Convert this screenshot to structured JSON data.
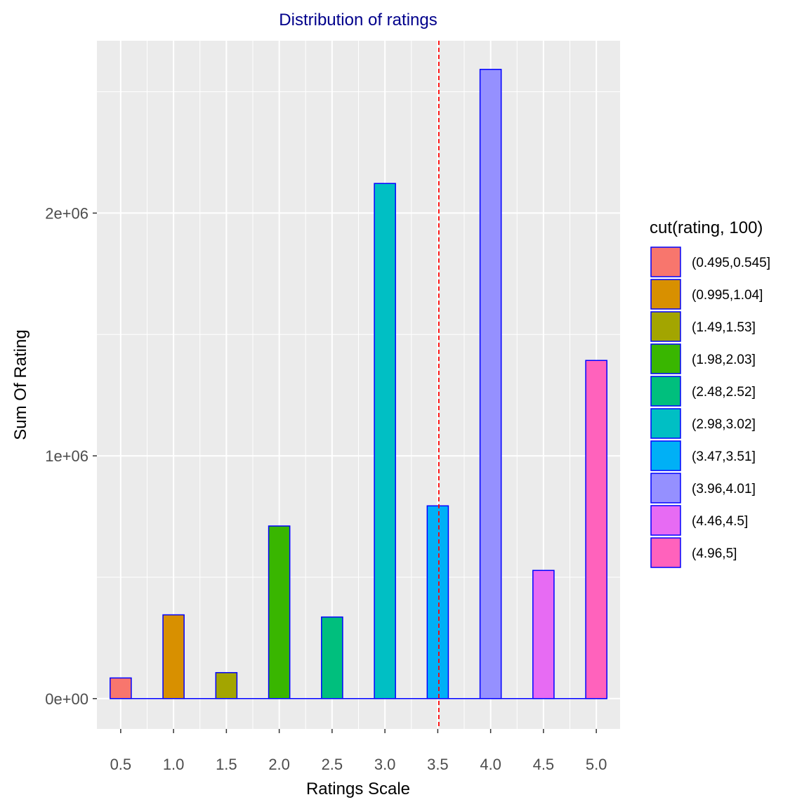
{
  "chart_data": {
    "type": "bar",
    "title": "Distribution of ratings",
    "xlabel": "Ratings Scale",
    "ylabel": "Sum Of Rating",
    "xlim": [
      0.275,
      5.225
    ],
    "ylim": [
      -125000,
      2710000
    ],
    "x_ticks": [
      0.5,
      1.0,
      1.5,
      2.0,
      2.5,
      3.0,
      3.5,
      4.0,
      4.5,
      5.0
    ],
    "x_tick_labels": [
      "0.5",
      "1.0",
      "1.5",
      "2.0",
      "2.5",
      "3.0",
      "3.5",
      "4.0",
      "4.5",
      "5.0"
    ],
    "y_ticks": [
      0,
      1000000,
      2000000
    ],
    "y_tick_labels": [
      "0e+00",
      "1e+06",
      "2e+06"
    ],
    "bar_outline_color": "#0000ff",
    "reference_line": {
      "x": 3.51,
      "color": "#ff0000",
      "style": "dashed"
    },
    "grid": true,
    "legend_placement": "right",
    "legend_title": "cut(rating, 100)",
    "series": [
      {
        "name": "(0.495,0.545]",
        "x": 0.5,
        "value": 85000,
        "color": "#F8766D"
      },
      {
        "name": "(0.995,1.04]",
        "x": 1.0,
        "value": 345000,
        "color": "#D89000"
      },
      {
        "name": "(1.49,1.53]",
        "x": 1.5,
        "value": 107000,
        "color": "#A3A500"
      },
      {
        "name": "(1.98,2.03]",
        "x": 2.0,
        "value": 711000,
        "color": "#39B600"
      },
      {
        "name": "(2.48,2.52]",
        "x": 2.5,
        "value": 336000,
        "color": "#00BF7D"
      },
      {
        "name": "(2.98,3.02]",
        "x": 3.0,
        "value": 2122000,
        "color": "#00BFC4"
      },
      {
        "name": "(3.47,3.51]",
        "x": 3.5,
        "value": 794000,
        "color": "#00B0F6"
      },
      {
        "name": "(3.96,4.01]",
        "x": 4.0,
        "value": 2592000,
        "color": "#9590FF"
      },
      {
        "name": "(4.46,4.5]",
        "x": 4.5,
        "value": 528000,
        "color": "#E76BF3"
      },
      {
        "name": "(4.96,5]",
        "x": 5.0,
        "value": 1393000,
        "color": "#FF62BC"
      }
    ]
  }
}
